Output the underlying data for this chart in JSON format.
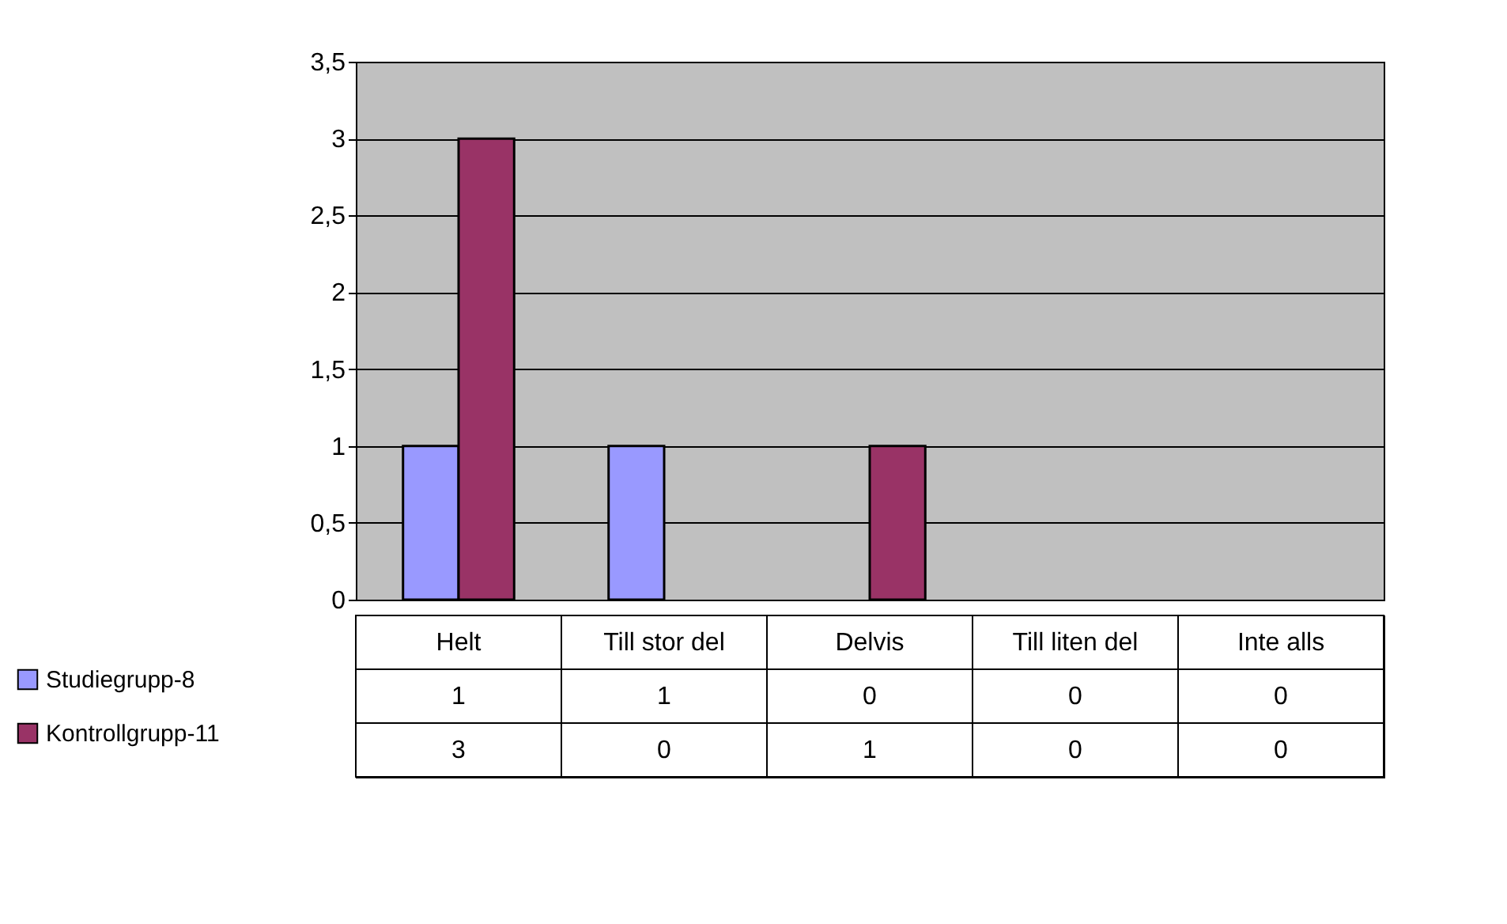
{
  "chart_data": {
    "type": "bar",
    "categories": [
      "Helt",
      "Till stor del",
      "Delvis",
      "Till liten del",
      "Inte alls"
    ],
    "series": [
      {
        "name": "Studiegrupp-8",
        "color": "#9999ff",
        "values": [
          1,
          1,
          0,
          0,
          0
        ]
      },
      {
        "name": "Kontrollgrupp-11",
        "color": "#993366",
        "values": [
          3,
          0,
          1,
          0,
          0
        ]
      }
    ],
    "ylim": [
      0,
      3.5
    ],
    "yticks": [
      0,
      {
        "value": 0.5,
        "label": "0,5"
      },
      1,
      {
        "value": 1.5,
        "label": "1,5"
      },
      2,
      {
        "value": 2.5,
        "label": "2,5"
      },
      3,
      {
        "value": 3.5,
        "label": "3,5"
      }
    ],
    "grid": "y",
    "legend": "bottom left",
    "data_labels": true
  }
}
